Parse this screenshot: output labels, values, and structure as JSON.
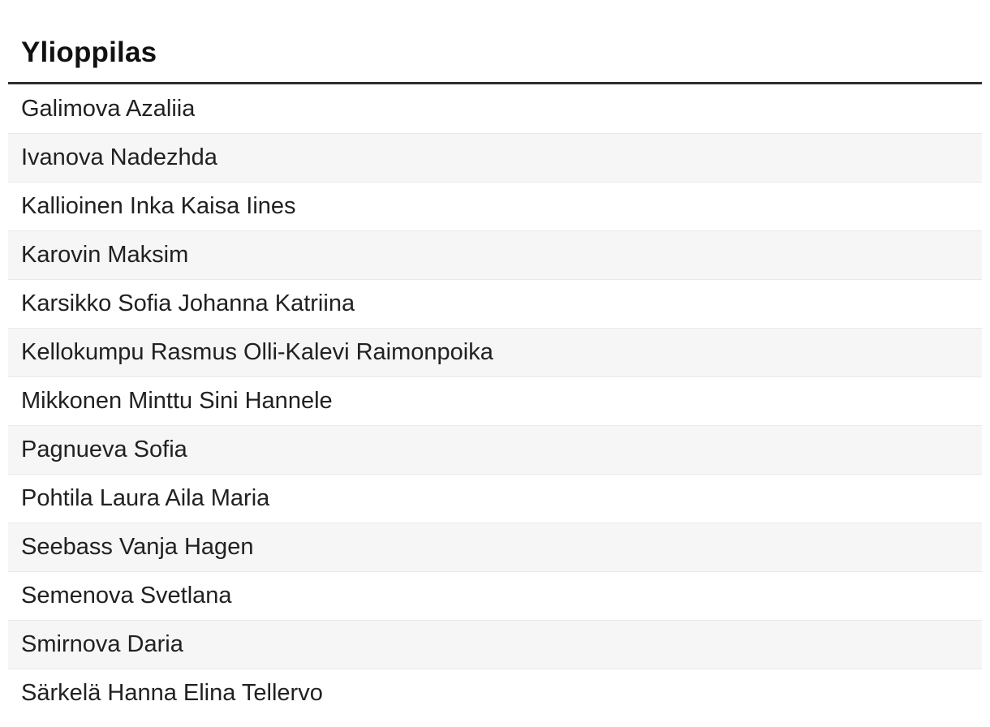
{
  "table": {
    "header": "Ylioppilas",
    "rows": [
      "Galimova Azaliia",
      "Ivanova Nadezhda",
      "Kallioinen Inka Kaisa Iines",
      "Karovin Maksim",
      "Karsikko Sofia Johanna Katriina",
      "Kellokumpu Rasmus Olli-Kalevi Raimonpoika",
      "Mikkonen Minttu Sini Hannele",
      "Pagnueva Sofia",
      "Pohtila Laura Aila Maria",
      "Seebass Vanja Hagen",
      "Semenova Svetlana",
      "Smirnova Daria",
      "Särkelä Hanna Elina Tellervo"
    ]
  },
  "colors": {
    "header_text": "#111111",
    "header_border": "#2e2e2e",
    "row_text": "#212121",
    "row_stripe": "#f6f6f6",
    "row_border": "#e9e9e9",
    "background": "#ffffff"
  }
}
